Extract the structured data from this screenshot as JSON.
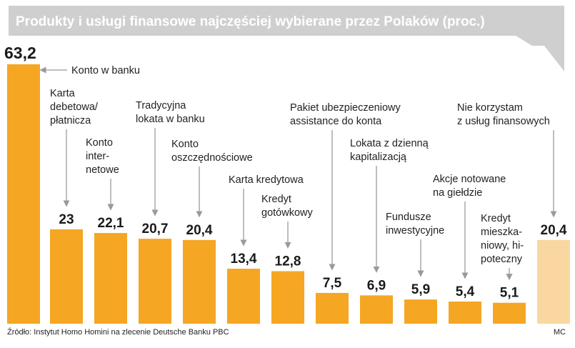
{
  "chart_data": {
    "type": "bar",
    "title": "Produkty i usługi finansowe najczęściej wybierane przez Polaków (proc.)",
    "categories": [
      "Konto w banku",
      "Karta debetowa/ płatnicza",
      "Konto internetowe",
      "Tradycyjna lokata w banku",
      "Konto oszczędnościowe",
      "Karta kredytowa",
      "Kredyt gotówkowy",
      "Pakiet ubezpieczeniowy assistance do konta",
      "Lokata z dzienną kapitalizacją",
      "Fundusze inwestycyjne",
      "Akcje notowane na giełdzie",
      "Kredyt mieszkaniowy, hipoteczny",
      "Nie korzystam z usług finansowych"
    ],
    "category_lines": [
      [
        "Konto w banku"
      ],
      [
        "Karta",
        "debetowa/",
        "płatnicza"
      ],
      [
        "Konto",
        "inter-",
        "netowe"
      ],
      [
        "Tradycyjna",
        "lokata w banku"
      ],
      [
        "Konto",
        "oszczędnościowe"
      ],
      [
        "Karta kredytowa"
      ],
      [
        "Kredyt",
        "gotówkowy"
      ],
      [
        "Pakiet ubezpieczeniowy",
        "assistance do konta"
      ],
      [
        "Lokata z dzienną",
        "kapitalizacją"
      ],
      [
        "Fundusze",
        "inwestycyjne"
      ],
      [
        "Akcje notowane",
        "na giełdzie"
      ],
      [
        "Kredyt",
        "mieszka-",
        "niowy, hi-",
        "poteczny"
      ],
      [
        "Nie korzystam",
        "z usług finansowych"
      ]
    ],
    "values": [
      63.2,
      23,
      22.1,
      20.7,
      20.4,
      13.4,
      12.8,
      7.5,
      6.9,
      5.9,
      5.4,
      5.1,
      20.4
    ],
    "value_labels": [
      "63,2",
      "23",
      "22,1",
      "20,7",
      "20,4",
      "13,4",
      "12,8",
      "7,5",
      "6,9",
      "5,9",
      "5,4",
      "5,1",
      "20,4"
    ],
    "ylim": [
      0,
      63.2
    ],
    "xlabel": "",
    "ylabel": "",
    "colors": {
      "bar": "#f5a623",
      "bar_highlight": "#fad7a0",
      "title_bg": "#cfcfcf",
      "arrow": "#9a9a9a"
    }
  },
  "footer": {
    "source": "Źródło: Instytut Homo Homini na zlecenie Deutsche Banku PBC",
    "credit": "MC"
  }
}
